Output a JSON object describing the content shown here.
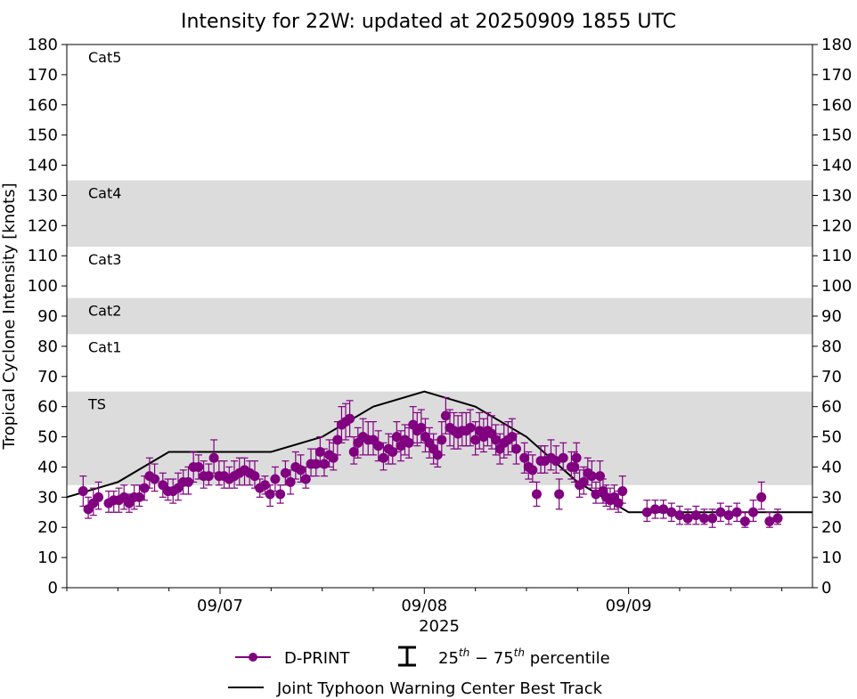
{
  "chart_data": {
    "type": "line",
    "title": "Intensity for 22W: updated at 20250909 1855 UTC",
    "ylabel": "Tropical Cyclone Intensity [knots]",
    "xlabel": "2025",
    "ylim": [
      0,
      180
    ],
    "yticks": [
      0,
      10,
      20,
      30,
      40,
      50,
      60,
      70,
      80,
      90,
      100,
      110,
      120,
      130,
      140,
      150,
      160,
      170,
      180
    ],
    "xlim": [
      -0.75,
      2.9
    ],
    "xticks": [
      {
        "label": "09/07",
        "value": 0
      },
      {
        "label": "09/08",
        "value": 1
      },
      {
        "label": "09/09",
        "value": 2
      }
    ],
    "minor_xticks": [
      -0.75,
      -0.5,
      -0.25,
      0.25,
      0.5,
      0.75,
      1.25,
      1.5,
      1.75,
      2.25,
      2.5,
      2.75
    ],
    "bands": [
      {
        "label": "TS",
        "from": 34,
        "to": 65,
        "shaded": true
      },
      {
        "label": "Cat1",
        "from": 65,
        "to": 84,
        "shaded": false
      },
      {
        "label": "Cat2",
        "from": 84,
        "to": 96,
        "shaded": true
      },
      {
        "label": "Cat3",
        "from": 96,
        "to": 113,
        "shaded": false
      },
      {
        "label": "Cat4",
        "from": 113,
        "to": 135,
        "shaded": true
      },
      {
        "label": "Cat5",
        "from": 135,
        "to": 180,
        "shaded": false
      }
    ],
    "band_color": "#dcdcdc",
    "legend": {
      "placement": "below",
      "entries": [
        {
          "label": "D-PRINT"
        },
        {
          "label": "25th - 75th percentile",
          "base1": "25",
          "sup1": "th",
          "dash": " − ",
          "base2": "75",
          "sup2": "th",
          "rest": " percentile"
        },
        {
          "label": "Joint Typhoon Warning Center Best Track"
        }
      ]
    },
    "series": [
      {
        "name": "Joint Typhoon Warning Center Best Track",
        "color": "#000000",
        "points": [
          {
            "x": -0.75,
            "y": 30
          },
          {
            "x": -0.5,
            "y": 35
          },
          {
            "x": -0.25,
            "y": 45
          },
          {
            "x": 0.0,
            "y": 45
          },
          {
            "x": 0.25,
            "y": 45
          },
          {
            "x": 0.5,
            "y": 50
          },
          {
            "x": 0.75,
            "y": 60
          },
          {
            "x": 1.0,
            "y": 65
          },
          {
            "x": 1.25,
            "y": 60
          },
          {
            "x": 1.5,
            "y": 50
          },
          {
            "x": 1.75,
            "y": 35
          },
          {
            "x": 2.0,
            "y": 25
          },
          {
            "x": 2.25,
            "y": 25
          },
          {
            "x": 2.5,
            "y": 25
          },
          {
            "x": 2.75,
            "y": 25
          },
          {
            "x": 2.9,
            "y": 25
          }
        ]
      },
      {
        "name": "D-PRINT",
        "color": "#800080",
        "points": [
          {
            "x": -0.67,
            "y": 32,
            "lo": 27,
            "hi": 37
          },
          {
            "x": -0.645,
            "y": 26,
            "lo": 23,
            "hi": 30
          },
          {
            "x": -0.62,
            "y": 28,
            "lo": 24,
            "hi": 33
          },
          {
            "x": -0.595,
            "y": 30,
            "lo": 26,
            "hi": 35
          },
          {
            "x": -0.545,
            "y": 28,
            "lo": 25,
            "hi": 32
          },
          {
            "x": -0.52,
            "y": 29,
            "lo": 25,
            "hi": 32
          },
          {
            "x": -0.495,
            "y": 29,
            "lo": 25,
            "hi": 33
          },
          {
            "x": -0.47,
            "y": 30,
            "lo": 26,
            "hi": 34
          },
          {
            "x": -0.445,
            "y": 28,
            "lo": 25,
            "hi": 31
          },
          {
            "x": -0.42,
            "y": 30,
            "lo": 26,
            "hi": 34
          },
          {
            "x": -0.395,
            "y": 30,
            "lo": 27,
            "hi": 34
          },
          {
            "x": -0.37,
            "y": 33,
            "lo": 29,
            "hi": 37
          },
          {
            "x": -0.345,
            "y": 37,
            "lo": 33,
            "hi": 43
          },
          {
            "x": -0.32,
            "y": 36,
            "lo": 32,
            "hi": 41
          },
          {
            "x": -0.28,
            "y": 34,
            "lo": 30,
            "hi": 38
          },
          {
            "x": -0.255,
            "y": 32,
            "lo": 29,
            "hi": 36
          },
          {
            "x": -0.23,
            "y": 32,
            "lo": 28,
            "hi": 36
          },
          {
            "x": -0.205,
            "y": 33,
            "lo": 29,
            "hi": 38
          },
          {
            "x": -0.18,
            "y": 35,
            "lo": 31,
            "hi": 39
          },
          {
            "x": -0.155,
            "y": 35,
            "lo": 31,
            "hi": 40
          },
          {
            "x": -0.13,
            "y": 40,
            "lo": 35,
            "hi": 45
          },
          {
            "x": -0.105,
            "y": 40,
            "lo": 36,
            "hi": 44
          },
          {
            "x": -0.08,
            "y": 37,
            "lo": 33,
            "hi": 42
          },
          {
            "x": -0.055,
            "y": 37,
            "lo": 34,
            "hi": 41
          },
          {
            "x": -0.03,
            "y": 43,
            "lo": 38,
            "hi": 49
          },
          {
            "x": -0.005,
            "y": 37,
            "lo": 34,
            "hi": 42
          },
          {
            "x": 0.02,
            "y": 37,
            "lo": 33,
            "hi": 42
          },
          {
            "x": 0.045,
            "y": 36,
            "lo": 33,
            "hi": 40
          },
          {
            "x": 0.07,
            "y": 37,
            "lo": 33,
            "hi": 42
          },
          {
            "x": 0.095,
            "y": 38,
            "lo": 34,
            "hi": 43
          },
          {
            "x": 0.12,
            "y": 39,
            "lo": 34,
            "hi": 43
          },
          {
            "x": 0.145,
            "y": 38,
            "lo": 34,
            "hi": 42
          },
          {
            "x": 0.17,
            "y": 37,
            "lo": 33,
            "hi": 42
          },
          {
            "x": 0.195,
            "y": 33,
            "lo": 30,
            "hi": 36
          },
          {
            "x": 0.22,
            "y": 34,
            "lo": 31,
            "hi": 37
          },
          {
            "x": 0.245,
            "y": 31,
            "lo": 27,
            "hi": 34
          },
          {
            "x": 0.27,
            "y": 36,
            "lo": 32,
            "hi": 40
          },
          {
            "x": 0.295,
            "y": 31,
            "lo": 28,
            "hi": 34
          },
          {
            "x": 0.32,
            "y": 38,
            "lo": 34,
            "hi": 42
          },
          {
            "x": 0.345,
            "y": 35,
            "lo": 31,
            "hi": 39
          },
          {
            "x": 0.37,
            "y": 40,
            "lo": 36,
            "hi": 45
          },
          {
            "x": 0.395,
            "y": 39,
            "lo": 35,
            "hi": 44
          },
          {
            "x": 0.42,
            "y": 36,
            "lo": 33,
            "hi": 40
          },
          {
            "x": 0.445,
            "y": 41,
            "lo": 37,
            "hi": 46
          },
          {
            "x": 0.47,
            "y": 41,
            "lo": 37,
            "hi": 46
          },
          {
            "x": 0.49,
            "y": 45,
            "lo": 40,
            "hi": 50
          },
          {
            "x": 0.51,
            "y": 41,
            "lo": 37,
            "hi": 46
          },
          {
            "x": 0.535,
            "y": 44,
            "lo": 40,
            "hi": 49
          },
          {
            "x": 0.555,
            "y": 43,
            "lo": 39,
            "hi": 48
          },
          {
            "x": 0.575,
            "y": 49,
            "lo": 44,
            "hi": 55
          },
          {
            "x": 0.595,
            "y": 54,
            "lo": 48,
            "hi": 60
          },
          {
            "x": 0.615,
            "y": 55,
            "lo": 49,
            "hi": 61
          },
          {
            "x": 0.635,
            "y": 56,
            "lo": 50,
            "hi": 62
          },
          {
            "x": 0.655,
            "y": 45,
            "lo": 41,
            "hi": 50
          },
          {
            "x": 0.675,
            "y": 48,
            "lo": 43,
            "hi": 53
          },
          {
            "x": 0.7,
            "y": 50,
            "lo": 44,
            "hi": 56
          },
          {
            "x": 0.725,
            "y": 49,
            "lo": 44,
            "hi": 55
          },
          {
            "x": 0.75,
            "y": 49,
            "lo": 44,
            "hi": 55
          },
          {
            "x": 0.775,
            "y": 47,
            "lo": 42,
            "hi": 52
          },
          {
            "x": 0.8,
            "y": 43,
            "lo": 39,
            "hi": 48
          },
          {
            "x": 0.825,
            "y": 46,
            "lo": 41,
            "hi": 51
          },
          {
            "x": 0.845,
            "y": 45,
            "lo": 41,
            "hi": 50
          },
          {
            "x": 0.865,
            "y": 50,
            "lo": 45,
            "hi": 55
          },
          {
            "x": 0.885,
            "y": 47,
            "lo": 42,
            "hi": 52
          },
          {
            "x": 0.905,
            "y": 49,
            "lo": 44,
            "hi": 54
          },
          {
            "x": 0.925,
            "y": 48,
            "lo": 43,
            "hi": 53
          },
          {
            "x": 0.945,
            "y": 54,
            "lo": 48,
            "hi": 60
          },
          {
            "x": 0.965,
            "y": 52,
            "lo": 47,
            "hi": 58
          },
          {
            "x": 0.985,
            "y": 53,
            "lo": 48,
            "hi": 59
          },
          {
            "x": 1.005,
            "y": 50,
            "lo": 45,
            "hi": 56
          },
          {
            "x": 1.025,
            "y": 48,
            "lo": 43,
            "hi": 53
          },
          {
            "x": 1.045,
            "y": 46,
            "lo": 41,
            "hi": 51
          },
          {
            "x": 1.065,
            "y": 44,
            "lo": 40,
            "hi": 49
          },
          {
            "x": 1.085,
            "y": 49,
            "lo": 44,
            "hi": 55
          },
          {
            "x": 1.105,
            "y": 57,
            "lo": 51,
            "hi": 63
          },
          {
            "x": 1.125,
            "y": 53,
            "lo": 47,
            "hi": 59
          },
          {
            "x": 1.145,
            "y": 52,
            "lo": 46,
            "hi": 58
          },
          {
            "x": 1.165,
            "y": 51,
            "lo": 46,
            "hi": 57
          },
          {
            "x": 1.185,
            "y": 52,
            "lo": 47,
            "hi": 58
          },
          {
            "x": 1.205,
            "y": 52,
            "lo": 47,
            "hi": 58
          },
          {
            "x": 1.225,
            "y": 53,
            "lo": 47,
            "hi": 59
          },
          {
            "x": 1.25,
            "y": 49,
            "lo": 44,
            "hi": 55
          },
          {
            "x": 1.27,
            "y": 52,
            "lo": 46,
            "hi": 58
          },
          {
            "x": 1.29,
            "y": 50,
            "lo": 45,
            "hi": 56
          },
          {
            "x": 1.31,
            "y": 52,
            "lo": 47,
            "hi": 58
          },
          {
            "x": 1.33,
            "y": 51,
            "lo": 46,
            "hi": 57
          },
          {
            "x": 1.35,
            "y": 49,
            "lo": 44,
            "hi": 54
          },
          {
            "x": 1.37,
            "y": 46,
            "lo": 41,
            "hi": 51
          },
          {
            "x": 1.39,
            "y": 48,
            "lo": 43,
            "hi": 54
          },
          {
            "x": 1.41,
            "y": 49,
            "lo": 44,
            "hi": 55
          },
          {
            "x": 1.43,
            "y": 50,
            "lo": 45,
            "hi": 56
          },
          {
            "x": 1.45,
            "y": 46,
            "lo": 41,
            "hi": 51
          },
          {
            "x": 1.49,
            "y": 43,
            "lo": 38,
            "hi": 48
          },
          {
            "x": 1.51,
            "y": 40,
            "lo": 36,
            "hi": 45
          },
          {
            "x": 1.53,
            "y": 39,
            "lo": 35,
            "hi": 44
          },
          {
            "x": 1.55,
            "y": 31,
            "lo": 27,
            "hi": 35
          },
          {
            "x": 1.57,
            "y": 42,
            "lo": 38,
            "hi": 47
          },
          {
            "x": 1.59,
            "y": 42,
            "lo": 38,
            "hi": 47
          },
          {
            "x": 1.62,
            "y": 43,
            "lo": 39,
            "hi": 49
          },
          {
            "x": 1.645,
            "y": 42,
            "lo": 38,
            "hi": 47
          },
          {
            "x": 1.66,
            "y": 31,
            "lo": 26,
            "hi": 36
          },
          {
            "x": 1.68,
            "y": 43,
            "lo": 39,
            "hi": 48
          },
          {
            "x": 1.72,
            "y": 40,
            "lo": 36,
            "hi": 45
          },
          {
            "x": 1.735,
            "y": 40,
            "lo": 35,
            "hi": 45
          },
          {
            "x": 1.745,
            "y": 43,
            "lo": 38,
            "hi": 48
          },
          {
            "x": 1.76,
            "y": 34,
            "lo": 30,
            "hi": 39
          },
          {
            "x": 1.78,
            "y": 35,
            "lo": 31,
            "hi": 40
          },
          {
            "x": 1.8,
            "y": 38,
            "lo": 34,
            "hi": 43
          },
          {
            "x": 1.82,
            "y": 37,
            "lo": 33,
            "hi": 42
          },
          {
            "x": 1.84,
            "y": 31,
            "lo": 28,
            "hi": 35
          },
          {
            "x": 1.86,
            "y": 37,
            "lo": 33,
            "hi": 42
          },
          {
            "x": 1.875,
            "y": 32,
            "lo": 28,
            "hi": 36
          },
          {
            "x": 1.89,
            "y": 30,
            "lo": 27,
            "hi": 34
          },
          {
            "x": 1.91,
            "y": 29,
            "lo": 26,
            "hi": 33
          },
          {
            "x": 1.93,
            "y": 30,
            "lo": 26,
            "hi": 34
          },
          {
            "x": 1.95,
            "y": 28,
            "lo": 25,
            "hi": 32
          },
          {
            "x": 1.97,
            "y": 32,
            "lo": 28,
            "hi": 37
          },
          {
            "x": 2.09,
            "y": 25,
            "lo": 22,
            "hi": 29
          },
          {
            "x": 2.13,
            "y": 26,
            "lo": 23,
            "hi": 29
          },
          {
            "x": 2.17,
            "y": 26,
            "lo": 23,
            "hi": 29
          },
          {
            "x": 2.21,
            "y": 25,
            "lo": 22,
            "hi": 28
          },
          {
            "x": 2.25,
            "y": 24,
            "lo": 21,
            "hi": 27
          },
          {
            "x": 2.29,
            "y": 23,
            "lo": 21,
            "hi": 26
          },
          {
            "x": 2.33,
            "y": 24,
            "lo": 21,
            "hi": 27
          },
          {
            "x": 2.37,
            "y": 23,
            "lo": 21,
            "hi": 26
          },
          {
            "x": 2.41,
            "y": 23,
            "lo": 20,
            "hi": 26
          },
          {
            "x": 2.45,
            "y": 25,
            "lo": 22,
            "hi": 28
          },
          {
            "x": 2.49,
            "y": 24,
            "lo": 21,
            "hi": 27
          },
          {
            "x": 2.53,
            "y": 25,
            "lo": 22,
            "hi": 28
          },
          {
            "x": 2.57,
            "y": 22,
            "lo": 20,
            "hi": 25
          },
          {
            "x": 2.61,
            "y": 25,
            "lo": 22,
            "hi": 29
          },
          {
            "x": 2.65,
            "y": 30,
            "lo": 26,
            "hi": 35
          },
          {
            "x": 2.69,
            "y": 22,
            "lo": 20,
            "hi": 25
          },
          {
            "x": 2.73,
            "y": 23,
            "lo": 21,
            "hi": 26
          }
        ]
      }
    ]
  }
}
